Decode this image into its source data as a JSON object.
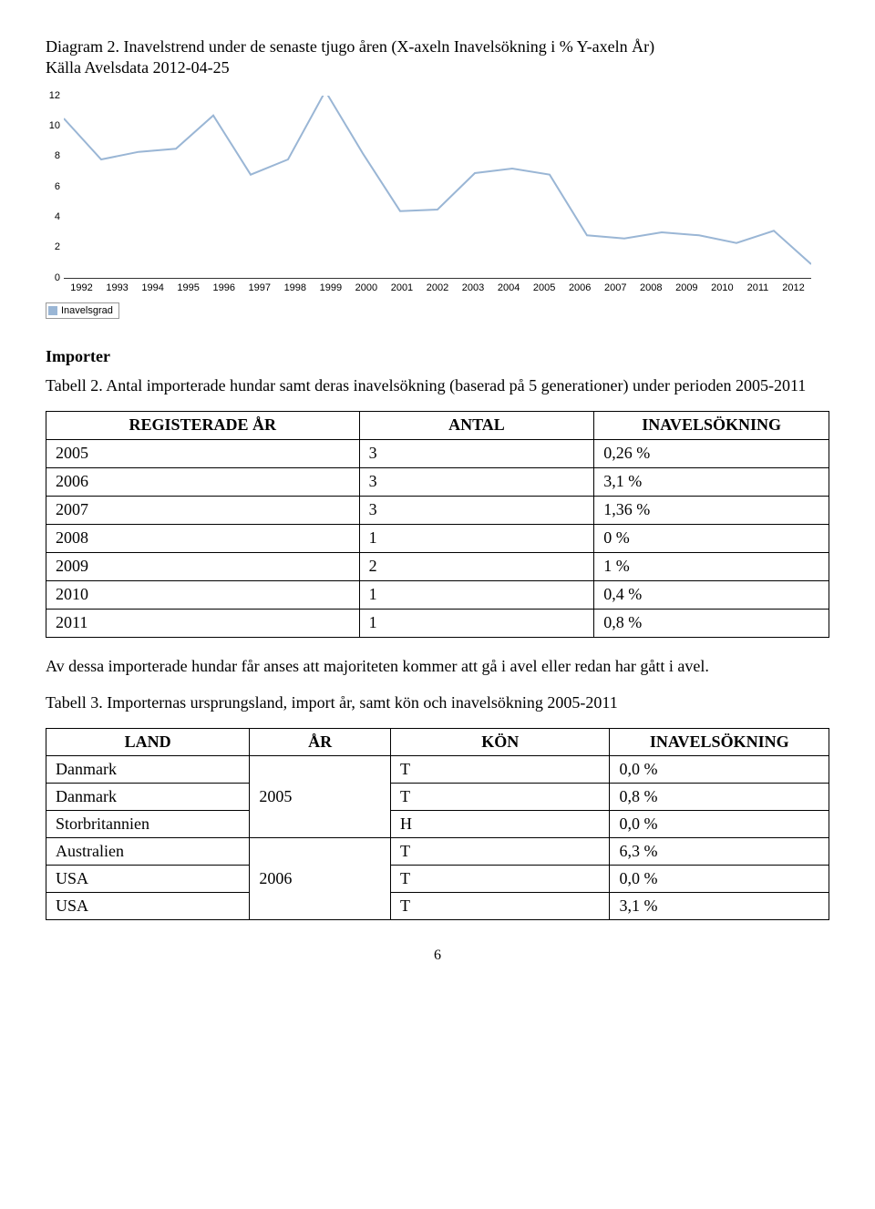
{
  "diagram2": {
    "caption_line1": "Diagram 2. Inavelstrend under de senaste tjugo åren (X-axeln Inavelsökning i % Y-axeln År)",
    "caption_line2": "Källa Avelsdata 2012-04-25",
    "chart": {
      "type": "line",
      "ylim": [
        0,
        12
      ],
      "ytick_step": 2,
      "yticks": [
        0,
        2,
        4,
        6,
        8,
        10,
        12
      ],
      "ytick_labels": [
        "0",
        "2",
        "4",
        "6",
        "8",
        "10",
        "12"
      ],
      "x_categories": [
        "1992",
        "1993",
        "1994",
        "1995",
        "1996",
        "1997",
        "1998",
        "1999",
        "2000",
        "2001",
        "2002",
        "2003",
        "2004",
        "2005",
        "2006",
        "2007",
        "2008",
        "2009",
        "2010",
        "2011",
        "2012"
      ],
      "values": [
        10.5,
        7.8,
        8.3,
        8.5,
        10.7,
        6.8,
        7.8,
        12.3,
        8.2,
        4.4,
        4.5,
        6.9,
        7.2,
        6.8,
        2.8,
        2.6,
        3.0,
        2.8,
        2.3,
        3.1,
        0.9
      ],
      "line_color": "#9ab6d5",
      "axis_color": "#333333",
      "axis_label_color": "#000000",
      "axis_font_size": 11,
      "line_width": 2,
      "background_color": "#ffffff",
      "legend_label": "Inavelsgrad",
      "legend_swatch_color": "#9ab6d5",
      "legend_border_color": "#999999"
    }
  },
  "importer_heading": "Importer",
  "tabell2": {
    "caption": "Tabell 2. Antal importerade hundar samt deras inavelsökning (baserad på 5 generationer) under perioden 2005-2011",
    "headers": [
      "REGISTERADE ÅR",
      "ANTAL",
      "INAVELSÖKNING"
    ],
    "rows": [
      [
        "2005",
        "3",
        "0,26 %"
      ],
      [
        "2006",
        "3",
        "3,1 %"
      ],
      [
        "2007",
        "3",
        "1,36 %"
      ],
      [
        "2008",
        "1",
        "0 %"
      ],
      [
        "2009",
        "2",
        "1 %"
      ],
      [
        "2010",
        "1",
        "0,4 %"
      ],
      [
        "2011",
        "1",
        "0,8 %"
      ]
    ]
  },
  "para_after_t2": "Av dessa importerade hundar får anses att majoriteten kommer att gå i avel eller redan har gått i avel.",
  "tabell3": {
    "caption": "Tabell 3. Importernas ursprungsland, import år, samt kön och inavelsökning 2005-2011",
    "headers": [
      "LAND",
      "ÅR",
      "KÖN",
      "INAVELSÖKNING"
    ],
    "rows": [
      {
        "land": "Danmark",
        "ar": "",
        "kon": "T",
        "ina": "0,0 %",
        "ar_rowspan": 3,
        "ar_label": "2005"
      },
      {
        "land": "Danmark",
        "kon": "T",
        "ina": "0,8 %"
      },
      {
        "land": "Storbritannien",
        "kon": "H",
        "ina": "0,0 %"
      },
      {
        "land": "Australien",
        "ar": "",
        "kon": "T",
        "ina": "6,3 %",
        "ar_rowspan": 3,
        "ar_label": "2006"
      },
      {
        "land": "USA",
        "kon": "T",
        "ina": "0,0 %"
      },
      {
        "land": "USA",
        "kon": "T",
        "ina": "3,1 %"
      }
    ]
  },
  "page_number": "6"
}
